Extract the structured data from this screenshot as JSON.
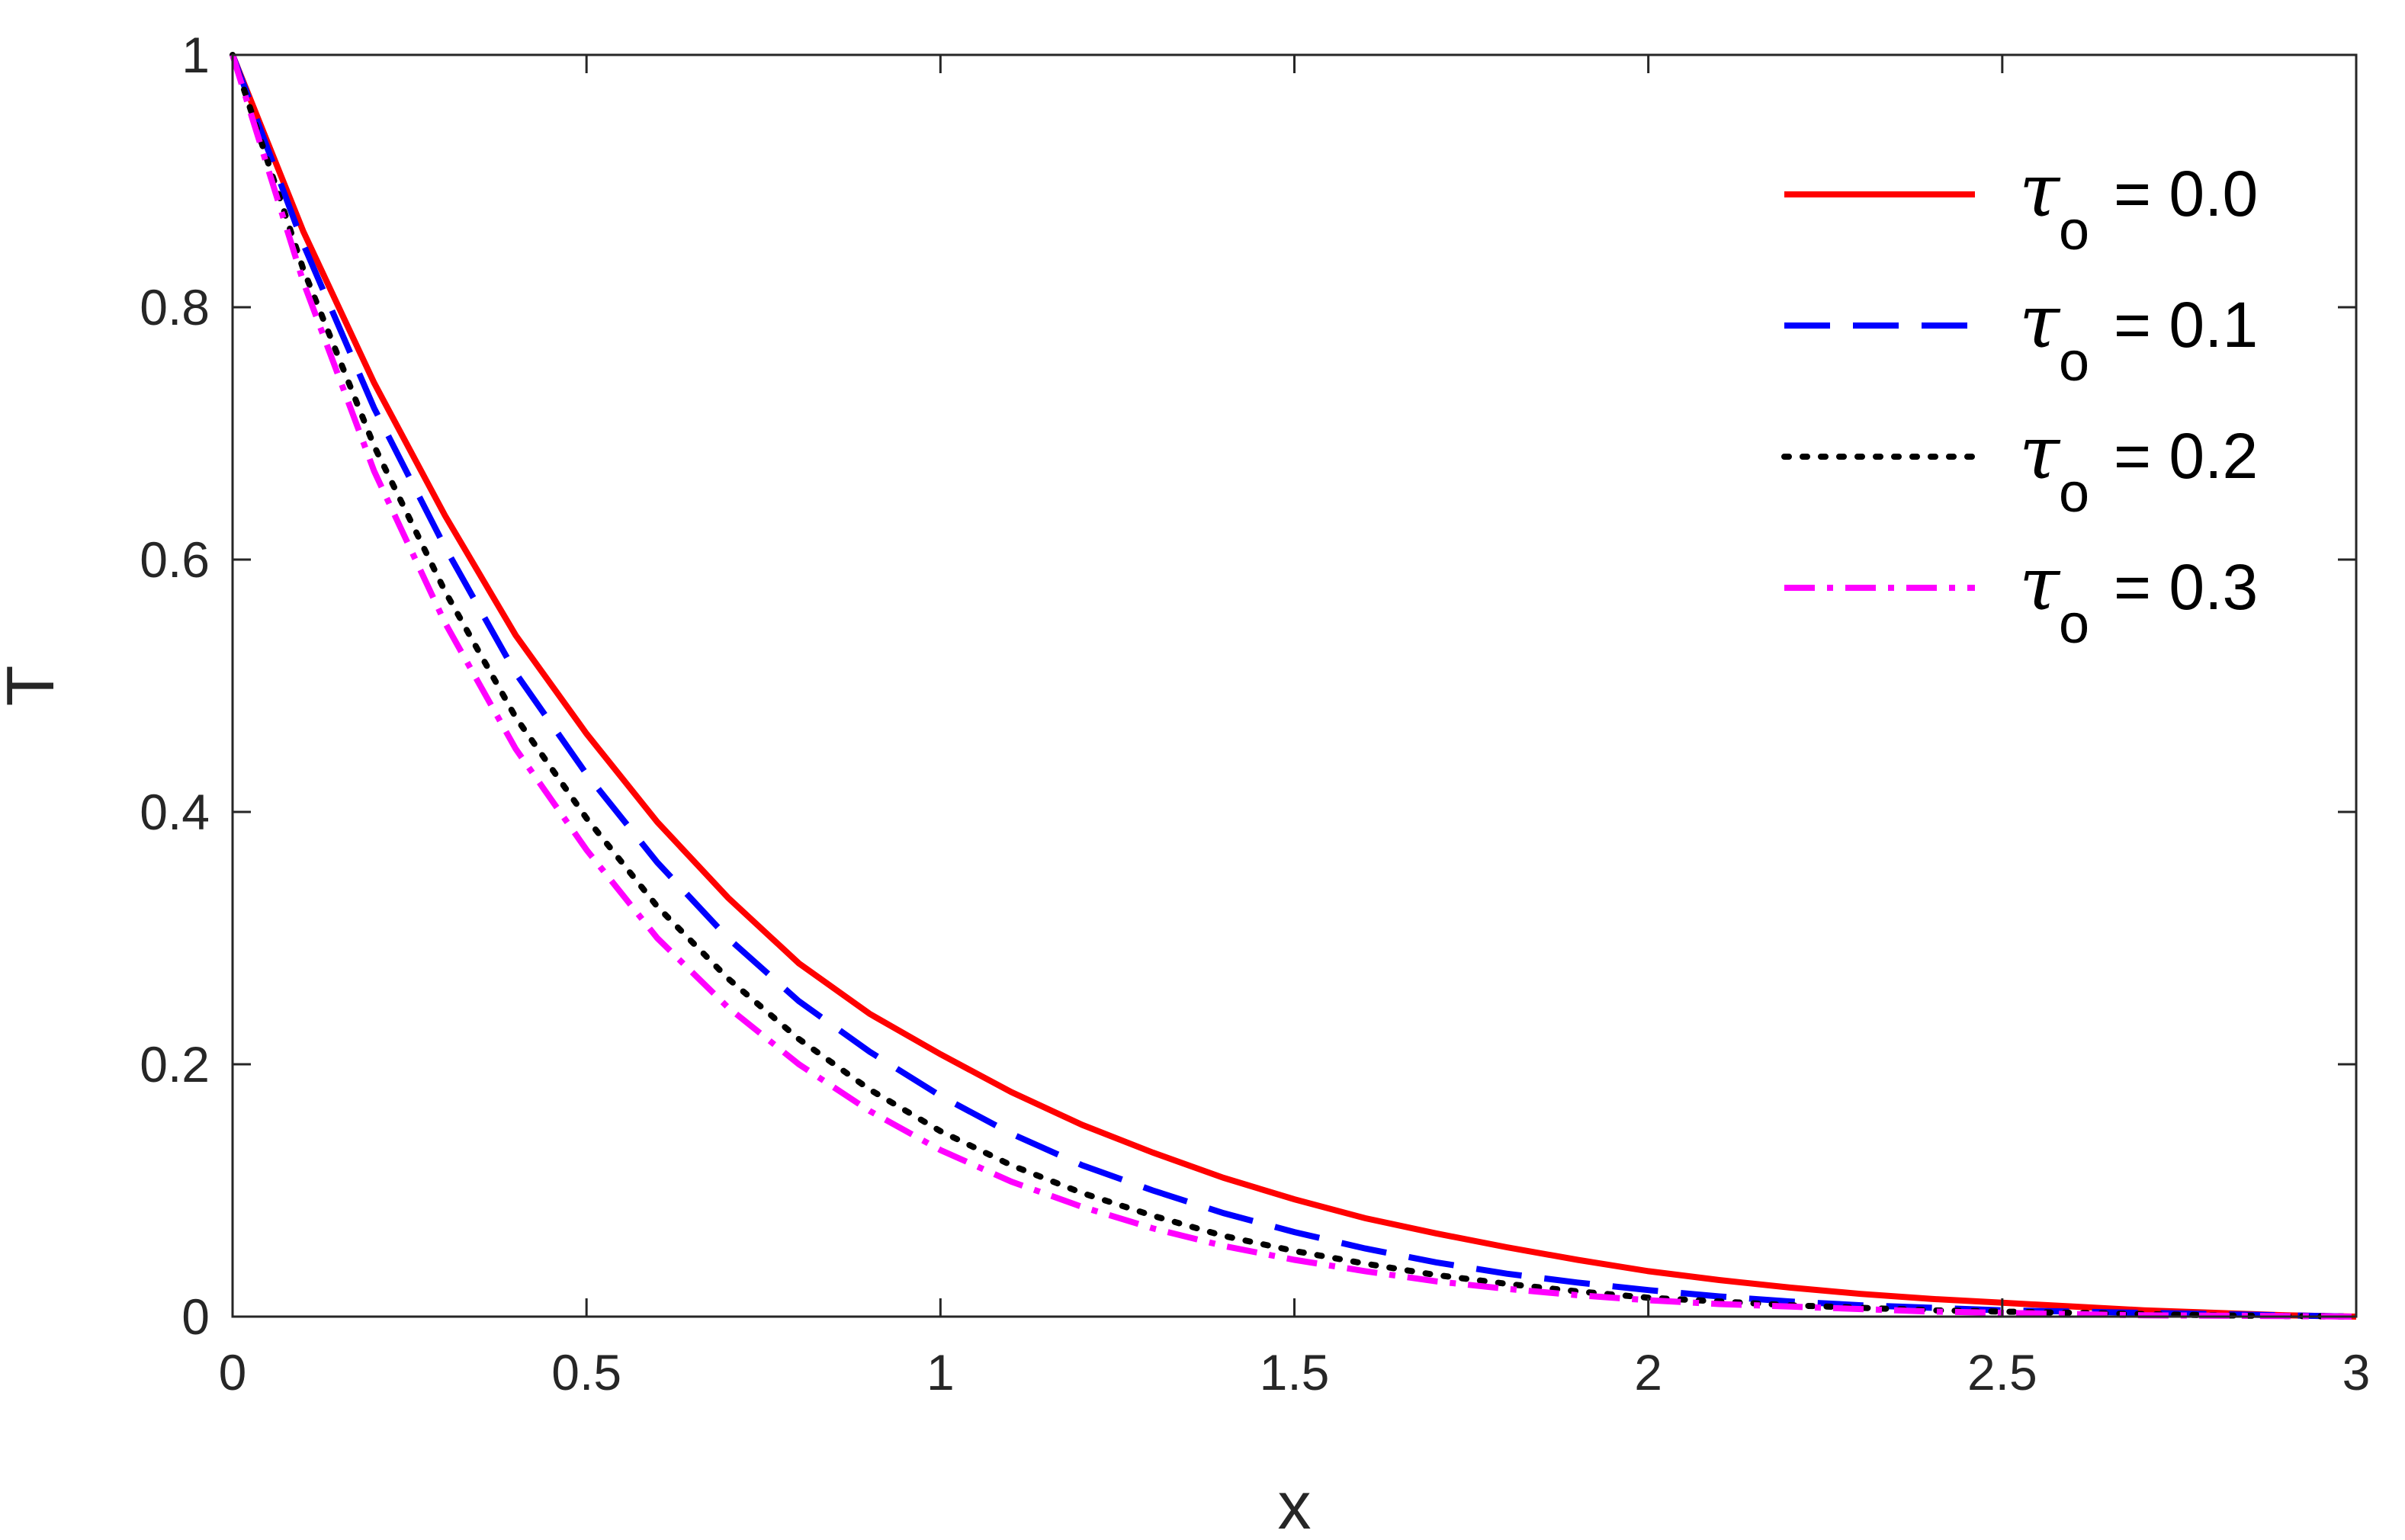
{
  "chart_data": {
    "type": "line",
    "title": "",
    "xlabel": "x",
    "ylabel": "T",
    "xlim": [
      0,
      3
    ],
    "ylim": [
      0,
      1
    ],
    "xticks": [
      "0",
      "0.5",
      "1",
      "1.5",
      "2",
      "2.5",
      "3"
    ],
    "yticks": [
      "0",
      "0.2",
      "0.4",
      "0.6",
      "0.8",
      "1"
    ],
    "grid": false,
    "legend_position": "top-right",
    "x": [
      0,
      0.1,
      0.2,
      0.3,
      0.4,
      0.5,
      0.6,
      0.7,
      0.8,
      0.9,
      1.0,
      1.1,
      1.2,
      1.3,
      1.4,
      1.5,
      1.6,
      1.7,
      1.8,
      1.9,
      2.0,
      2.1,
      2.2,
      2.3,
      2.4,
      2.5,
      2.6,
      2.7,
      2.8,
      2.9,
      3.0
    ],
    "series": [
      {
        "name": "τo = 0.0",
        "legend_symbol": "τ",
        "legend_subscript": "o",
        "legend_value": "= 0.0",
        "color": "#ff0000",
        "dash": "solid",
        "values": [
          1.0,
          0.86,
          0.74,
          0.635,
          0.54,
          0.462,
          0.392,
          0.332,
          0.28,
          0.24,
          0.208,
          0.178,
          0.152,
          0.13,
          0.11,
          0.093,
          0.078,
          0.066,
          0.055,
          0.045,
          0.036,
          0.029,
          0.023,
          0.018,
          0.014,
          0.011,
          0.008,
          0.005,
          0.003,
          0.001,
          0.0
        ]
      },
      {
        "name": "τo = 0.1",
        "legend_symbol": "τ",
        "legend_subscript": "o",
        "legend_value": "= 0.1",
        "color": "#0000ff",
        "dash": "dashed",
        "values": [
          1.0,
          0.85,
          0.72,
          0.61,
          0.51,
          0.43,
          0.36,
          0.3,
          0.25,
          0.21,
          0.175,
          0.145,
          0.12,
          0.1,
          0.082,
          0.067,
          0.054,
          0.043,
          0.034,
          0.027,
          0.021,
          0.016,
          0.012,
          0.009,
          0.007,
          0.005,
          0.004,
          0.003,
          0.002,
          0.001,
          0.0
        ]
      },
      {
        "name": "τo = 0.2",
        "legend_symbol": "τ",
        "legend_subscript": "o",
        "legend_value": "= 0.2",
        "color": "#000000",
        "dash": "dotted",
        "values": [
          1.0,
          0.83,
          0.69,
          0.575,
          0.475,
          0.395,
          0.325,
          0.268,
          0.22,
          0.18,
          0.147,
          0.12,
          0.098,
          0.08,
          0.064,
          0.052,
          0.042,
          0.033,
          0.026,
          0.02,
          0.015,
          0.012,
          0.009,
          0.007,
          0.005,
          0.004,
          0.003,
          0.002,
          0.001,
          0.0005,
          0.0
        ]
      },
      {
        "name": "τo = 0.3",
        "legend_symbol": "τ",
        "legend_subscript": "o",
        "legend_value": "= 0.3",
        "color": "#ff00ff",
        "dash": "dashdot",
        "values": [
          1.0,
          0.82,
          0.67,
          0.55,
          0.45,
          0.37,
          0.3,
          0.245,
          0.2,
          0.163,
          0.132,
          0.107,
          0.087,
          0.07,
          0.056,
          0.045,
          0.036,
          0.028,
          0.022,
          0.017,
          0.013,
          0.01,
          0.008,
          0.006,
          0.004,
          0.003,
          0.002,
          0.001,
          0.0008,
          0.0004,
          0.0
        ]
      }
    ]
  }
}
